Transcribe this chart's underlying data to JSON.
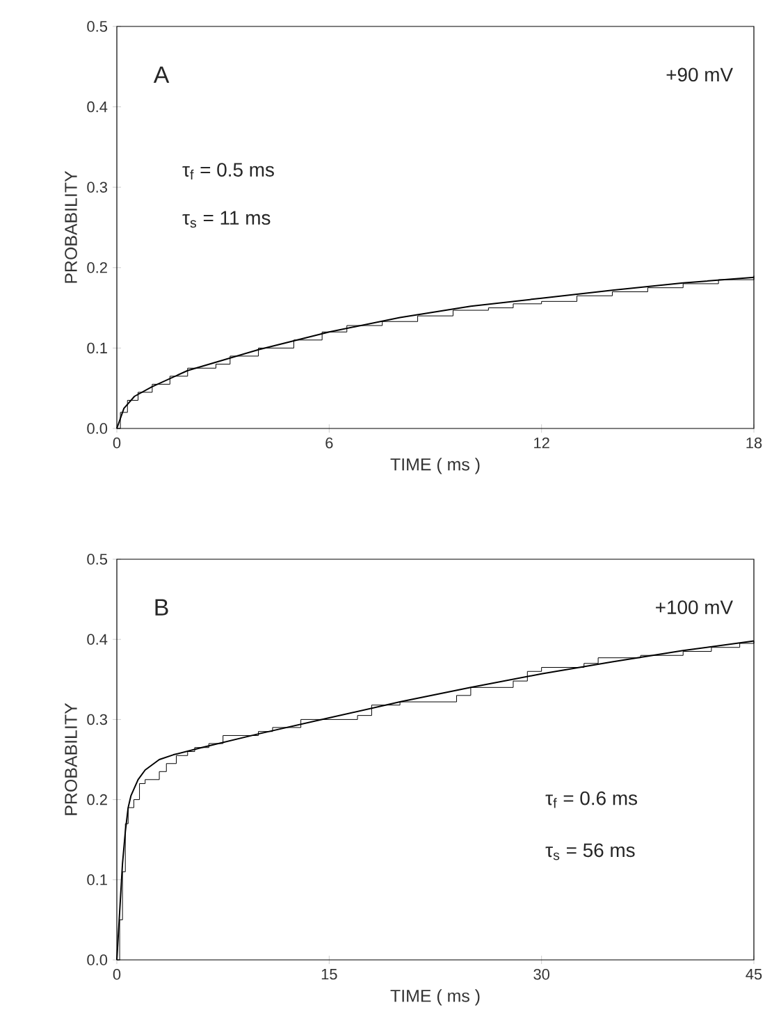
{
  "chart_data": [
    {
      "type": "line",
      "xlabel": "TIME ( ms )",
      "ylabel": "PROBABILITY",
      "xlim": [
        0,
        18
      ],
      "ylim": [
        0,
        0.5
      ],
      "xticks": [
        0,
        6,
        12,
        18
      ],
      "yticks": [
        {
          "value": 0,
          "label": "0.0"
        },
        0.1,
        0.2,
        0.3,
        0.4,
        0.5
      ],
      "annotations": [
        "A",
        "+90 mV",
        "τ$_{f}$ = 0.5 ms",
        "τ$_{s}$ = 11 ms"
      ],
      "series": [
        {
          "type": "step",
          "color": "#000000",
          "x": [
            0,
            0.1,
            0.3,
            0.6,
            1,
            1.5,
            2,
            2.8,
            3.2,
            4,
            5,
            5.8,
            6.5,
            7.5,
            8.5,
            9.5,
            10.5,
            11.2,
            12,
            13,
            14,
            15,
            16,
            17,
            18
          ],
          "values": [
            0,
            0.02,
            0.035,
            0.045,
            0.055,
            0.065,
            0.075,
            0.08,
            0.09,
            0.1,
            0.11,
            0.12,
            0.128,
            0.133,
            0.14,
            0.147,
            0.15,
            0.155,
            0.158,
            0.165,
            0.17,
            0.175,
            0.18,
            0.185,
            0.19
          ]
        },
        {
          "type": "line",
          "color": "#000000",
          "x": [
            0,
            0.2,
            0.5,
            1,
            2,
            3,
            4,
            6,
            8,
            10,
            12,
            14,
            16,
            18
          ],
          "values": [
            0,
            0.025,
            0.04,
            0.052,
            0.072,
            0.085,
            0.098,
            0.12,
            0.138,
            0.152,
            0.162,
            0.172,
            0.181,
            0.188
          ]
        }
      ]
    },
    {
      "type": "line",
      "xlabel": "TIME ( ms )",
      "ylabel": "PROBABILITY",
      "xlim": [
        0,
        45
      ],
      "ylim": [
        0,
        0.5
      ],
      "xticks": [
        0,
        15,
        30,
        45
      ],
      "yticks": [
        {
          "value": 0,
          "label": "0.0"
        },
        0.1,
        0.2,
        0.3,
        0.4,
        0.5
      ],
      "annotations": [
        "B",
        "+100 mV",
        "τ$_{f}$ = 0.6 ms",
        "τ$_{s}$ = 56 ms"
      ],
      "series": [
        {
          "type": "step",
          "color": "#000000",
          "x": [
            0,
            0.2,
            0.4,
            0.6,
            0.8,
            1.2,
            1.6,
            2,
            3,
            3.5,
            4.2,
            5,
            5.5,
            6.5,
            7.5,
            10,
            11,
            13,
            17,
            18,
            20,
            24,
            25,
            28,
            29,
            30,
            33,
            34,
            37,
            40,
            42,
            44,
            45
          ],
          "values": [
            0,
            0.05,
            0.11,
            0.17,
            0.19,
            0.2,
            0.22,
            0.225,
            0.235,
            0.245,
            0.255,
            0.26,
            0.265,
            0.27,
            0.28,
            0.285,
            0.29,
            0.3,
            0.305,
            0.318,
            0.322,
            0.33,
            0.34,
            0.348,
            0.36,
            0.365,
            0.37,
            0.377,
            0.38,
            0.385,
            0.39,
            0.395,
            0.398
          ]
        },
        {
          "type": "line",
          "color": "#000000",
          "x": [
            0,
            0.2,
            0.4,
            0.6,
            0.8,
            1,
            1.5,
            2,
            3,
            4,
            6,
            10,
            15,
            20,
            25,
            30,
            35,
            40,
            45
          ],
          "values": [
            0,
            0.06,
            0.12,
            0.16,
            0.19,
            0.205,
            0.225,
            0.237,
            0.25,
            0.256,
            0.265,
            0.282,
            0.302,
            0.322,
            0.34,
            0.357,
            0.372,
            0.386,
            0.398
          ]
        }
      ]
    }
  ]
}
